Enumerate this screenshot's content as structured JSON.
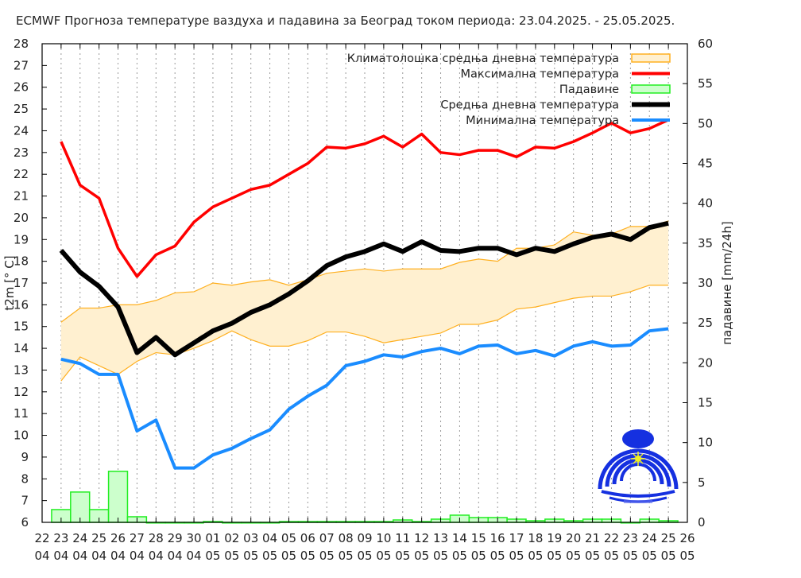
{
  "chart_data": {
    "type": "line",
    "title": "ECMWF Прогноза температуре ваздуха и падавина за Београд током периода: 23.04.2025. - 25.05.2025.",
    "ylabel": "t2m [° C]",
    "y2label": "падавине [mm/24h]",
    "ylim": [
      6,
      28
    ],
    "y2lim": [
      0,
      60
    ],
    "grid": "vertical dotted",
    "legend_position": "top-right",
    "yticks": [
      6,
      7,
      8,
      9,
      10,
      11,
      12,
      13,
      14,
      15,
      16,
      17,
      18,
      19,
      20,
      21,
      22,
      23,
      24,
      25,
      26,
      27,
      28
    ],
    "y2ticks": [
      0,
      5,
      10,
      15,
      20,
      25,
      30,
      35,
      40,
      45,
      50,
      55,
      60
    ],
    "xtick_days": [
      "22",
      "23",
      "24",
      "25",
      "26",
      "27",
      "28",
      "29",
      "30",
      "01",
      "02",
      "03",
      "04",
      "05",
      "06",
      "07",
      "08",
      "09",
      "10",
      "11",
      "12",
      "13",
      "14",
      "15",
      "16",
      "17",
      "18",
      "19",
      "20",
      "21",
      "22",
      "23",
      "24",
      "25",
      "26"
    ],
    "xtick_months": [
      "04",
      "04",
      "04",
      "04",
      "04",
      "04",
      "04",
      "04",
      "04",
      "05",
      "05",
      "05",
      "05",
      "05",
      "05",
      "05",
      "05",
      "05",
      "05",
      "05",
      "05",
      "05",
      "05",
      "05",
      "05",
      "05",
      "05",
      "05",
      "05",
      "05",
      "05",
      "05",
      "05",
      "05",
      "05"
    ],
    "x_start_index": 1,
    "legend": [
      {
        "key": "clim",
        "label": "Климатолошка средња дневна температура"
      },
      {
        "key": "max",
        "label": "Максимална температура"
      },
      {
        "key": "precip",
        "label": "Падавине"
      },
      {
        "key": "mean",
        "label": "Средња дневна температура"
      },
      {
        "key": "min",
        "label": "Минимална температура"
      }
    ],
    "colors": {
      "max": "#ff0000",
      "mean": "#000000",
      "min": "#1a8cff",
      "clim_fill": "#fff0d0",
      "clim_line": "#ffb020",
      "precip_fill": "#ccffcc",
      "precip_line": "#22ee22"
    },
    "series": {
      "max": [
        23.5,
        21.5,
        20.9,
        18.6,
        17.3,
        18.3,
        18.7,
        19.8,
        20.5,
        20.9,
        21.3,
        21.5,
        22.0,
        22.5,
        23.25,
        23.2,
        23.4,
        23.75,
        23.25,
        23.85,
        23.0,
        22.9,
        23.1,
        23.1,
        22.8,
        23.25,
        23.2,
        23.5,
        23.9,
        24.35,
        23.9,
        24.1,
        24.5
      ],
      "mean": [
        18.5,
        17.5,
        16.85,
        15.9,
        13.8,
        14.5,
        13.7,
        14.25,
        14.8,
        15.15,
        15.65,
        16.0,
        16.5,
        17.1,
        17.8,
        18.2,
        18.45,
        18.8,
        18.45,
        18.9,
        18.5,
        18.45,
        18.6,
        18.6,
        18.3,
        18.6,
        18.45,
        18.8,
        19.1,
        19.25,
        19.0,
        19.55,
        19.75
      ],
      "min": [
        13.5,
        13.3,
        12.8,
        12.8,
        10.2,
        10.7,
        8.5,
        8.5,
        9.1,
        9.4,
        9.85,
        10.25,
        11.2,
        11.8,
        12.3,
        13.2,
        13.4,
        13.7,
        13.6,
        13.85,
        14.0,
        13.75,
        14.1,
        14.15,
        13.75,
        13.9,
        13.65,
        14.1,
        14.3,
        14.1,
        14.15,
        14.8,
        14.9
      ],
      "clim_upper": [
        15.2,
        15.85,
        15.85,
        16.0,
        16.0,
        16.2,
        16.55,
        16.6,
        17.0,
        16.9,
        17.05,
        17.15,
        16.9,
        17.15,
        17.45,
        17.55,
        17.65,
        17.55,
        17.65,
        17.65,
        17.65,
        17.95,
        18.1,
        18.0,
        18.6,
        18.6,
        18.75,
        19.35,
        19.2,
        19.25,
        19.6,
        19.6,
        19.85
      ],
      "clim_lower": [
        12.5,
        13.6,
        13.2,
        12.8,
        13.4,
        13.8,
        13.7,
        14.0,
        14.35,
        14.8,
        14.4,
        14.1,
        14.1,
        14.35,
        14.75,
        14.75,
        14.55,
        14.25,
        14.4,
        14.55,
        14.7,
        15.1,
        15.1,
        15.3,
        15.8,
        15.9,
        16.1,
        16.3,
        16.4,
        16.4,
        16.6,
        16.9,
        16.9
      ],
      "precip": [
        1.6,
        3.8,
        1.6,
        6.4,
        0.7,
        0,
        0,
        0,
        0.1,
        0,
        0,
        0,
        0.1,
        0.1,
        0.1,
        0.1,
        0.1,
        0.1,
        0.3,
        0.1,
        0.4,
        0.9,
        0.6,
        0.6,
        0.4,
        0.2,
        0.4,
        0.2,
        0.4,
        0.4,
        0,
        0.4,
        0.2
      ]
    }
  }
}
